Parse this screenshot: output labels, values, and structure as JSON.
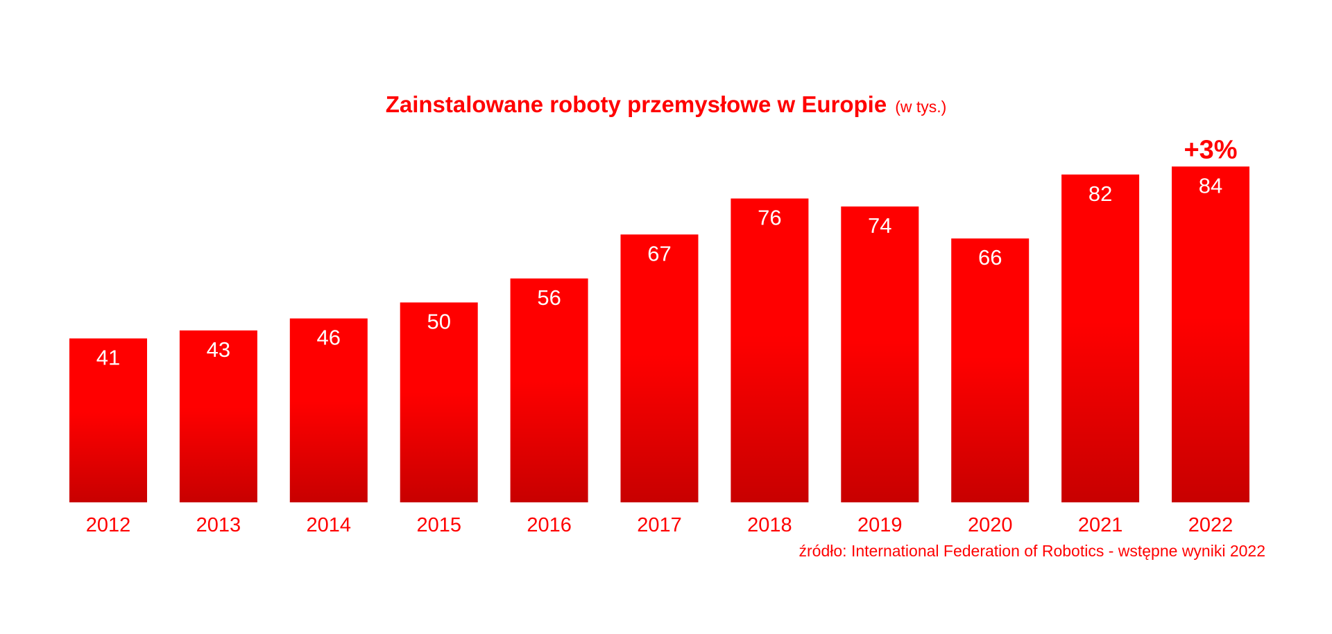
{
  "chart_data": {
    "type": "bar",
    "title": "Zainstalowane roboty przemysłowe w Europie",
    "unit": "(w tys.)",
    "categories": [
      "2012",
      "2013",
      "2014",
      "2015",
      "2016",
      "2017",
      "2018",
      "2019",
      "2020",
      "2021",
      "2022"
    ],
    "values": [
      41,
      43,
      46,
      50,
      56,
      67,
      76,
      74,
      66,
      82,
      84
    ],
    "annotation": {
      "category": "2022",
      "text": "+3%"
    },
    "source": "źródło: International Federation of Robotics - wstępne wyniki 2022",
    "ylim": [
      0,
      84
    ],
    "grid": false,
    "colors": {
      "bar_top": "#ff0000",
      "bar_bottom": "#c80000",
      "text": "#ff0000",
      "label": "#ffffff"
    }
  }
}
